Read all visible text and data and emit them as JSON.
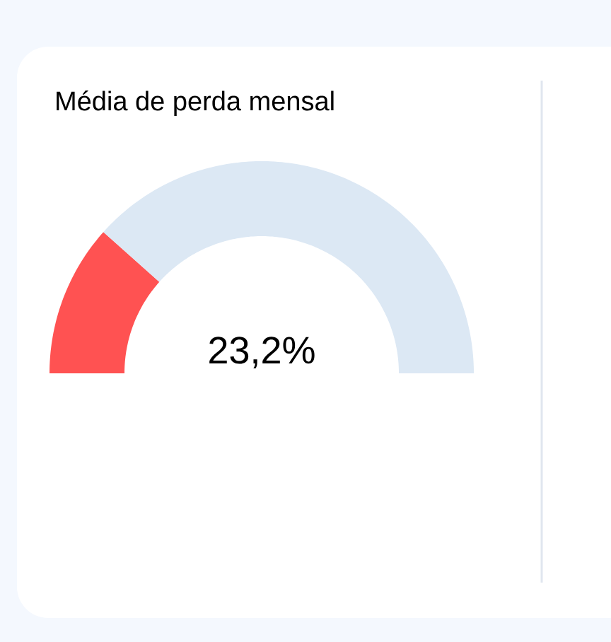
{
  "chart_data": {
    "type": "donut",
    "title": "Média de perda mensal",
    "categories": [
      null,
      null
    ],
    "values": [
      23.2,
      76.8
    ],
    "colors": [
      "#ff5252",
      "#dce8f4"
    ],
    "annotations": [
      "23,2%"
    ]
  }
}
